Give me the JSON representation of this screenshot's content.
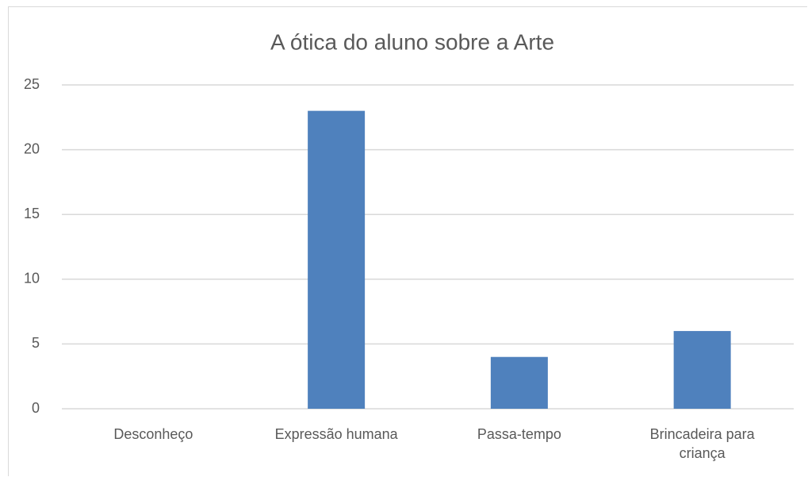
{
  "chart_data": {
    "type": "bar",
    "title": "A ótica do aluno sobre a Arte",
    "categories": [
      "Desconheço",
      "Expressão humana",
      "Passa-tempo",
      "Brincadeira para criança"
    ],
    "values": [
      0,
      23,
      4,
      6
    ],
    "color": "#4f81bd",
    "ylim": [
      0,
      25
    ],
    "yticks": [
      0,
      5,
      10,
      15,
      20,
      25
    ],
    "grid": true
  }
}
